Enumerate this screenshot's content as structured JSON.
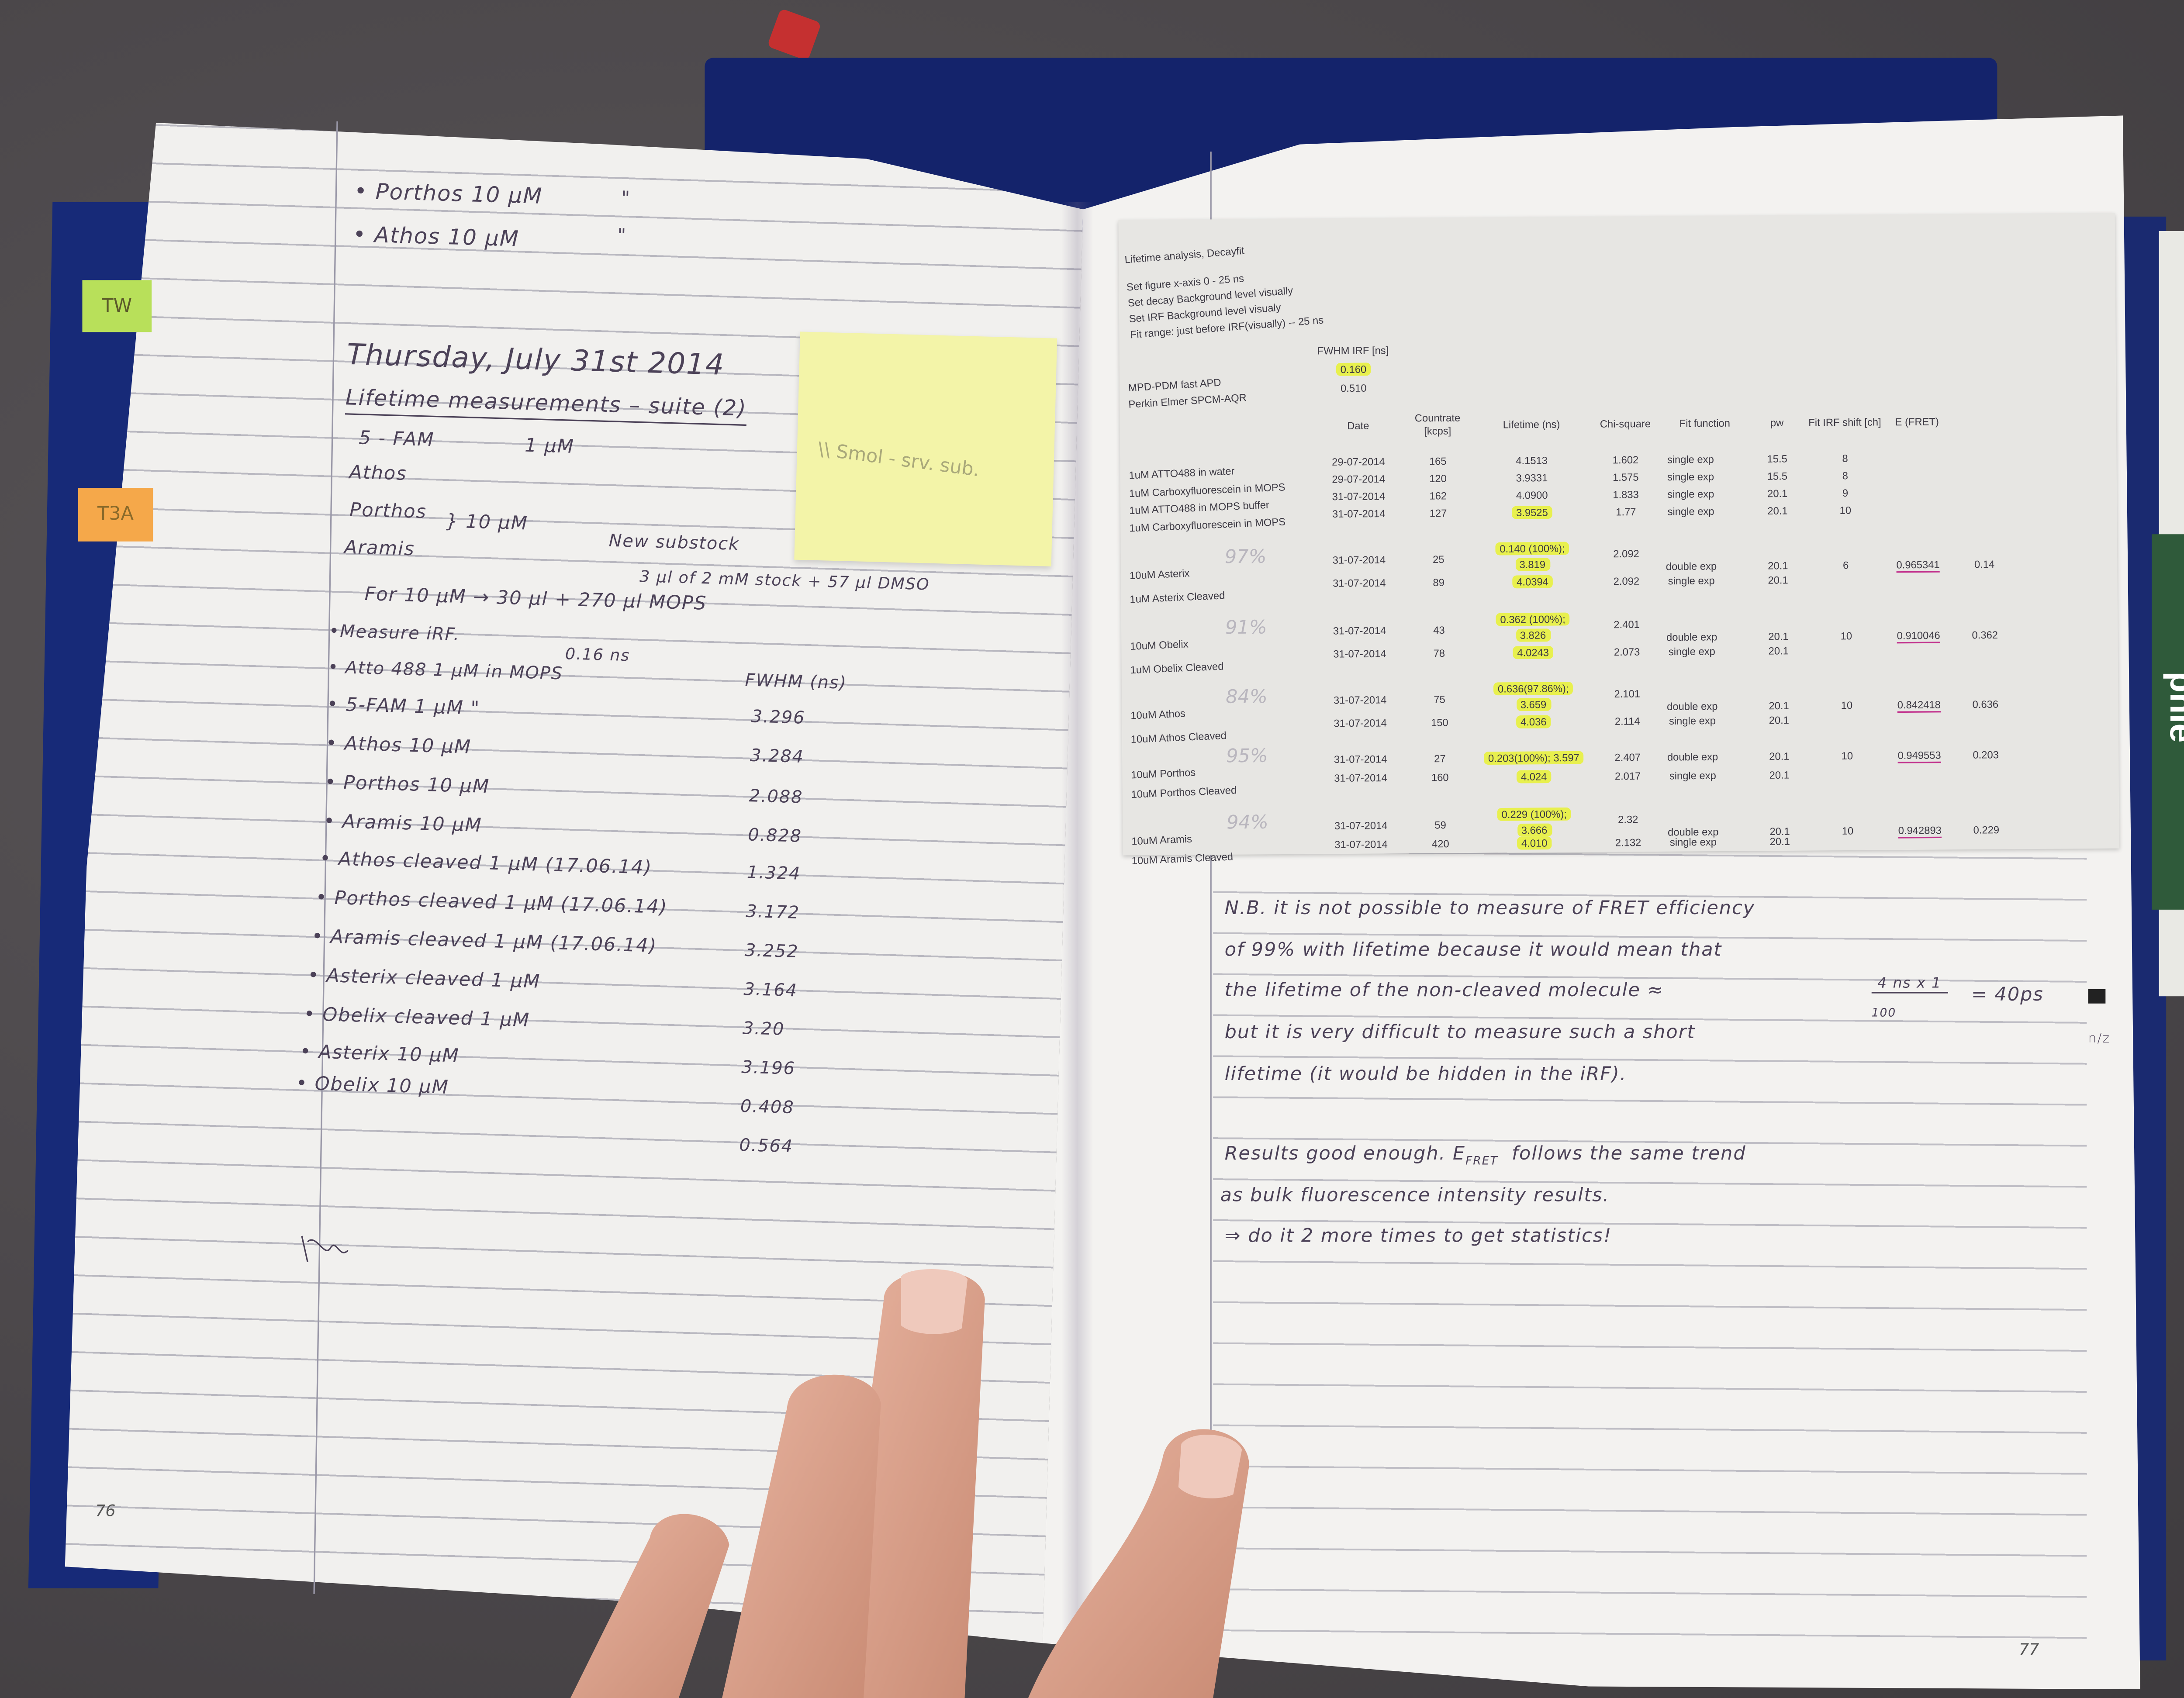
{
  "left_page": {
    "page_number": "76",
    "tabs": [
      "TW",
      "T3A"
    ],
    "sticky_note": "\\\\ Smol - srv. sub.",
    "lines": [
      "• Porthos 10 µM",
      "\"",
      "• Athos 10 µM",
      "\"",
      "Thursday, July 31st 2014",
      "Lifetime measurements – suite (2)",
      "5 - FAM",
      "1 µM",
      "Athos",
      "Porthos",
      "Aramis",
      "} 10 µM",
      "New substock",
      "3 µl of 2 mM stock + 57 µl DMSO",
      "For 10 µM → 30 µl + 270 µl MOPS",
      "•Measure iRF.",
      "0.16 ns",
      "• Atto 488   1 µM in MOPS",
      "FWHM (ns)",
      "• 5-FAM    1 µM     \"",
      "3.296",
      "• Athos    10 µM",
      "3.284",
      "• Porthos   10 µM",
      "2.088",
      "• Aramis   10 µM",
      "0.828",
      "• Athos cleaved  1 µM (17.06.14)",
      "1.324",
      "• Porthos cleaved  1 µM (17.06.14)",
      "3.172",
      "• Aramis cleaved  1 µM (17.06.14)",
      "3.252",
      "• Asterix cleaved  1 µM",
      "3.164",
      "• Obelix cleaved  1 µM",
      "3.20",
      "• Asterix    10 µM",
      "3.196",
      "• Obelix    10 µM",
      "0.408",
      "0.564"
    ]
  },
  "right_page": {
    "page_number": "77",
    "side_labels": [
      "phie",
      "n/z"
    ],
    "printout": {
      "title": "Lifetime analysis, Decayfit",
      "settings": [
        "Set figure x-axis 0 - 25 ns",
        "Set decay Background level visually",
        "Set IRF Background level visualy",
        "Fit range: just before IRF(visually) -- 25 ns"
      ],
      "irf_header": "FWHM IRF [ns]",
      "irf": [
        {
          "label": "MPD-PDM fast APD",
          "value": "0.160"
        },
        {
          "label": "Perkin Elmer SPCM-AQR",
          "value": "0.510"
        }
      ],
      "headers": [
        "Date",
        "Countrate [kcps]",
        "Lifetime (ns)",
        "Chi-square",
        "Fit function",
        "pw",
        "Fit IRF shift [ch]",
        "E (FRET)"
      ],
      "rows": [
        {
          "label": "1uM ATTO488 in water",
          "date": "29-07-2014",
          "countrate": "165",
          "lifetime": [
            "4.1513"
          ],
          "chi": "1.602",
          "fit": "single exp",
          "pw": "15.5",
          "shift": "8",
          "efret": "",
          "extra": "",
          "highlight": false
        },
        {
          "label": "1uM Carboxyfluorescein in MOPS",
          "date": "29-07-2014",
          "countrate": "120",
          "lifetime": [
            "3.9331"
          ],
          "chi": "1.575",
          "fit": "single exp",
          "pw": "15.5",
          "shift": "8",
          "efret": "",
          "extra": "",
          "highlight": false
        },
        {
          "label": "1uM ATTO488 in MOPS buffer",
          "date": "31-07-2014",
          "countrate": "162",
          "lifetime": [
            "4.0900"
          ],
          "chi": "1.833",
          "fit": "single exp",
          "pw": "20.1",
          "shift": "9",
          "efret": "",
          "extra": "",
          "highlight": false
        },
        {
          "label": "1uM Carboxyfluorescein in MOPS",
          "date": "31-07-2014",
          "countrate": "127",
          "lifetime": [
            "3.9525"
          ],
          "chi": "1.77",
          "fit": "single exp",
          "pw": "20.1",
          "shift": "10",
          "efret": "",
          "extra": "",
          "highlight": true
        },
        {
          "label": "10uM Asterix",
          "pencil": "97%",
          "date": "31-07-2014",
          "countrate": "25",
          "lifetime": [
            "0.140 (100%);",
            "3.819"
          ],
          "chi": "2.092",
          "fit": "double exp",
          "pw": "20.1",
          "shift": "6",
          "efret": "0.965341",
          "extra": "0.14",
          "highlight": true
        },
        {
          "label": "1uM Asterix Cleaved",
          "date": "31-07-2014",
          "countrate": "89",
          "lifetime": [
            "4.0394"
          ],
          "chi": "2.092",
          "fit": "single exp",
          "pw": "20.1",
          "shift": "",
          "efret": "",
          "extra": "",
          "highlight": true
        },
        {
          "label": "10uM Obelix",
          "pencil": "91%",
          "date": "31-07-2014",
          "countrate": "43",
          "lifetime": [
            "0.362 (100%);",
            "3.826"
          ],
          "chi": "2.401",
          "fit": "double exp",
          "pw": "20.1",
          "shift": "10",
          "efret": "0.910046",
          "extra": "0.362",
          "highlight": true
        },
        {
          "label": "1uM Obelix Cleaved",
          "date": "31-07-2014",
          "countrate": "78",
          "lifetime": [
            "4.0243"
          ],
          "chi": "2.073",
          "fit": "single exp",
          "pw": "20.1",
          "shift": "",
          "efret": "",
          "extra": "",
          "highlight": true
        },
        {
          "label": "10uM Athos",
          "pencil": "84%",
          "date": "31-07-2014",
          "countrate": "75",
          "lifetime": [
            "0.636(97.86%);",
            "3.659"
          ],
          "chi": "2.101",
          "fit": "double exp",
          "pw": "20.1",
          "shift": "10",
          "efret": "0.842418",
          "extra": "0.636",
          "highlight": true
        },
        {
          "label": "10uM Athos Cleaved",
          "date": "31-07-2014",
          "countrate": "150",
          "lifetime": [
            "4.036"
          ],
          "chi": "2.114",
          "fit": "single exp",
          "pw": "20.1",
          "shift": "",
          "efret": "",
          "extra": "",
          "highlight": true
        },
        {
          "label": "10uM Porthos",
          "pencil": "95%",
          "date": "31-07-2014",
          "countrate": "27",
          "lifetime": [
            "0.203(100%); 3.597"
          ],
          "chi": "2.407",
          "fit": "double exp",
          "pw": "20.1",
          "shift": "10",
          "efret": "0.949553",
          "extra": "0.203",
          "highlight": true
        },
        {
          "label": "10uM Porthos Cleaved",
          "date": "31-07-2014",
          "countrate": "160",
          "lifetime": [
            "4.024"
          ],
          "chi": "2.017",
          "fit": "single exp",
          "pw": "20.1",
          "shift": "",
          "efret": "",
          "extra": "",
          "highlight": true
        },
        {
          "label": "10uM Aramis",
          "pencil": "94%",
          "date": "31-07-2014",
          "countrate": "59",
          "lifetime": [
            "0.229 (100%);",
            "3.666"
          ],
          "chi": "2.32",
          "fit": "double exp",
          "pw": "20.1",
          "shift": "10",
          "efret": "0.942893",
          "extra": "0.229",
          "highlight": true
        },
        {
          "label": "10uM Aramis Cleaved",
          "date": "31-07-2014",
          "countrate": "420",
          "lifetime": [
            "4.010"
          ],
          "chi": "2.132",
          "fit": "single exp",
          "pw": "20.1",
          "shift": "",
          "efret": "",
          "extra": "",
          "highlight": true
        }
      ]
    },
    "notes": {
      "nb_1": "N.B. it is not possible to measure of FRET efficiency",
      "nb_2": "of 99% with lifetime because it would mean that",
      "nb_3": "the lifetime of the non-cleaved molecule ≈",
      "fraction_num": "4 ns x 1",
      "fraction_den": "100",
      "fraction_result": "= 40ps",
      "nb_4": "but it is very difficult to measure such a short",
      "nb_5": "lifetime (it would be hidden in the iRF).",
      "res_1a": "Results good enough.  E",
      "res_1sub": "FRET",
      "res_1b": "follows the same trend",
      "res_2": "as bulk fluorescence intensity results.",
      "res_3": "⇒ do it 2 more times to get statistics!"
    }
  },
  "colors": {
    "highlight": "#e8f04e",
    "pink_marker": "#c2338e",
    "ink": "#4c4258",
    "cover": "#14236b",
    "sticky": "#f3f4a8"
  }
}
